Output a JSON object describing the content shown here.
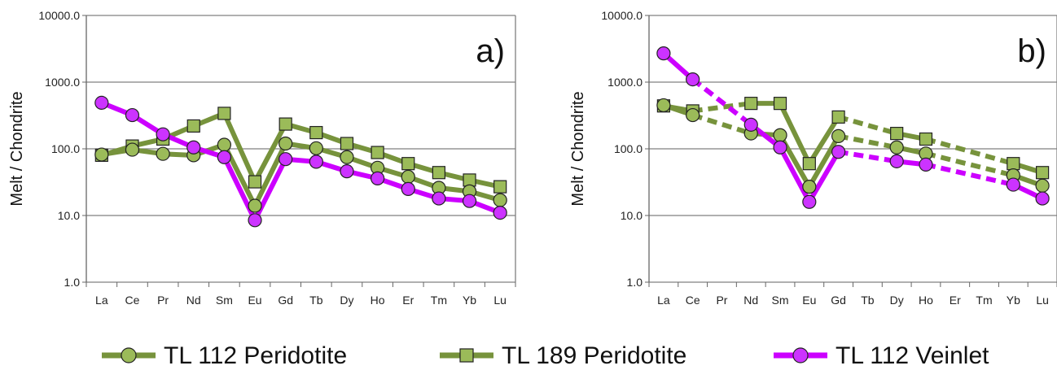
{
  "colors": {
    "green": "#77933C",
    "green_marker": "#9BBB59",
    "magenta": "#CC00FF",
    "magenta_marker": "#CC33FF",
    "grid": "#808080"
  },
  "legend": [
    {
      "label": "TL 112 Peridotite",
      "color": "#77933C",
      "marker": "circle"
    },
    {
      "label": "TL 189 Peridotite",
      "color": "#77933C",
      "marker": "square"
    },
    {
      "label": "TL 112 Veinlet",
      "color": "#CC00FF",
      "marker": "circle"
    }
  ],
  "chart_data": [
    {
      "type": "line",
      "panel_label": "a)",
      "ylabel": "Melt / Chondrite",
      "yscale": "log",
      "ylim": [
        1,
        10000
      ],
      "yticks": [
        "1.0",
        "10.0",
        "100.0",
        "1000.0",
        "10000.0"
      ],
      "categories": [
        "La",
        "Ce",
        "Pr",
        "Nd",
        "Sm",
        "Eu",
        "Gd",
        "Tb",
        "Dy",
        "Ho",
        "Er",
        "Tm",
        "Yb",
        "Lu"
      ],
      "series": [
        {
          "name": "TL 189 Peridotite",
          "marker": "square",
          "color": "#77933C",
          "values": [
            80,
            110,
            140,
            220,
            340,
            32,
            235,
            175,
            120,
            88,
            60,
            44,
            34,
            27
          ]
        },
        {
          "name": "TL 112 Peridotite",
          "marker": "circle",
          "color": "#77933C",
          "values": [
            82,
            97,
            84,
            80,
            115,
            14,
            120,
            102,
            75,
            52,
            38,
            26,
            23,
            17
          ]
        },
        {
          "name": "TL 112 Veinlet",
          "marker": "circle",
          "color": "#CC00FF",
          "values": [
            490,
            320,
            165,
            105,
            75,
            8.5,
            70,
            64,
            46,
            36,
            25,
            18,
            16.5,
            11
          ]
        }
      ]
    },
    {
      "type": "line",
      "panel_label": "b)",
      "ylabel": "Melt / Chondrite",
      "yscale": "log",
      "ylim": [
        1,
        10000
      ],
      "yticks": [
        "1.0",
        "10.0",
        "100.0",
        "1000.0",
        "10000.0"
      ],
      "categories": [
        "La",
        "Ce",
        "Pr",
        "Nd",
        "Sm",
        "Eu",
        "Gd",
        "Tb",
        "Dy",
        "Ho",
        "Er",
        "Tm",
        "Yb",
        "Lu"
      ],
      "series": [
        {
          "name": "TL 189 Peridotite",
          "marker": "square",
          "color": "#77933C",
          "values": [
            440,
            370,
            null,
            480,
            480,
            60,
            300,
            null,
            170,
            140,
            null,
            null,
            60,
            44
          ]
        },
        {
          "name": "TL 112 Peridotite",
          "marker": "circle",
          "color": "#77933C",
          "values": [
            450,
            320,
            null,
            170,
            160,
            27,
            155,
            null,
            105,
            85,
            null,
            null,
            40,
            28
          ]
        },
        {
          "name": "TL 112 Veinlet",
          "marker": "circle",
          "color": "#CC00FF",
          "values": [
            2700,
            1100,
            null,
            230,
            105,
            16,
            90,
            null,
            65,
            58,
            null,
            null,
            29,
            18
          ]
        }
      ]
    }
  ]
}
